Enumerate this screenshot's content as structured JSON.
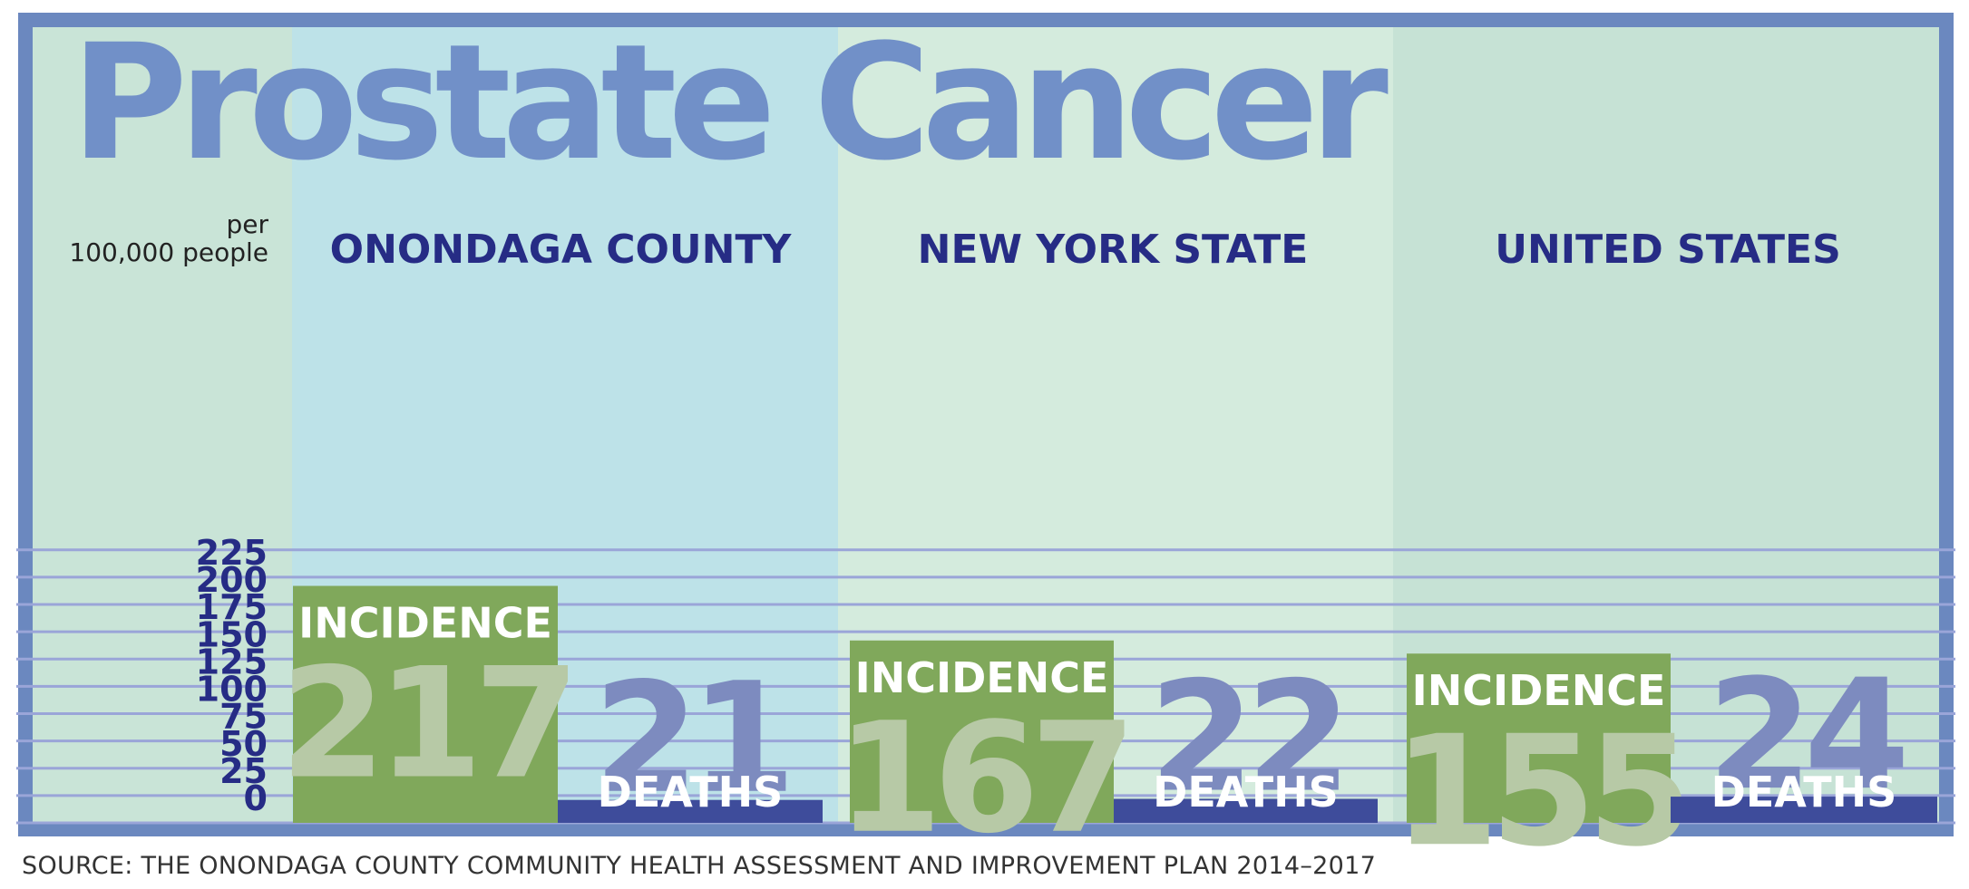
{
  "title": "Prostate Cancer",
  "unit_label_line1": "per",
  "unit_label_line2": "100,000 people",
  "source": "SOURCE: THE ONONDAGA COUNTY COMMUNITY HEALTH ASSESSMENT AND IMPROVEMENT PLAN 2014–2017",
  "colors": {
    "frame": "#6b88bf",
    "panel_left": "#c9e4d7",
    "panel_onondaga": "#bde2e8",
    "panel_ny": "#d4ebdd",
    "panel_us": "#c6e2d5",
    "gridline": "#9aa5d8",
    "incidence_bar": "#80a85b",
    "deaths_bar": "#3e4c9b",
    "region_text": "#262c85",
    "tick_text": "#262c85",
    "incidence_value_text": "#b7c9a6",
    "deaths_value_text": "#7d8bbf",
    "bar_label_text": "#ffffff"
  },
  "chart_data": {
    "type": "bar",
    "categories": [
      "ONONDAGA COUNTY",
      "NEW YORK STATE",
      "UNITED STATES"
    ],
    "series": [
      {
        "name": "INCIDENCE",
        "values": [
          217,
          167,
          155
        ]
      },
      {
        "name": "DEATHS",
        "values": [
          21,
          22,
          24
        ]
      }
    ],
    "yticks": [
      "0",
      "25",
      "50",
      "75",
      "100",
      "125",
      "150",
      "175",
      "200",
      "225"
    ],
    "ylim": [
      0,
      250
    ],
    "ylabel": "per 100,000 people",
    "grid": true
  }
}
